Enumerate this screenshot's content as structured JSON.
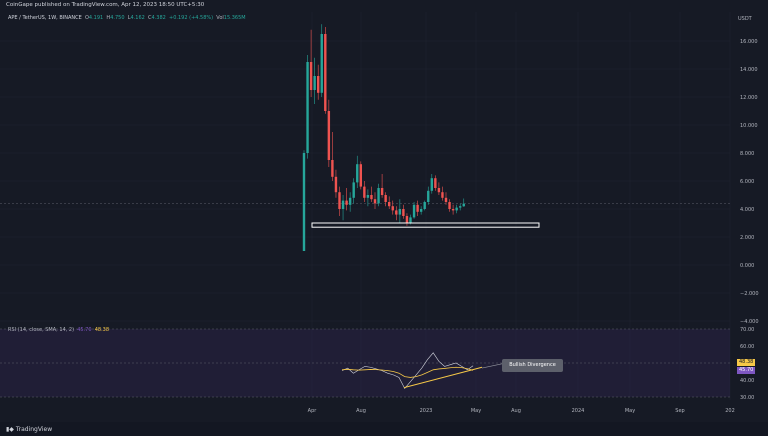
{
  "header": {
    "publisher": "CoinGape published on TradingView.com, Apr 12, 2023 18:50 UTC+5:30"
  },
  "legend": {
    "symbol": "APE / TetherUS, 1W, BINANCE",
    "open_label": "O",
    "open": "4.191",
    "high_label": "H",
    "high": "4.750",
    "low_label": "L",
    "low": "4.162",
    "close_label": "C",
    "close": "4.382",
    "change": "+0.192 (+4.58%)",
    "vol_label": "Vol",
    "vol": "15.365M"
  },
  "price_axis": {
    "currency": "USDT",
    "ticks": [
      "16.000",
      "14.000",
      "12.000",
      "10.000",
      "8.000",
      "6.000",
      "4.000",
      "2.000",
      "0.000",
      "−2.000",
      "−4.000"
    ]
  },
  "rsi": {
    "label": "RSI (14, close, SMA, 14, 2)",
    "value_sma": "45.70",
    "value_rsi": "48.38",
    "ticks": [
      "70.00",
      "60.00",
      "50.00",
      "40.00",
      "30.00"
    ],
    "tag_rsi": "48.38",
    "tag_sma": "45.70"
  },
  "time_axis": {
    "ticks": [
      "Apr",
      "Aug",
      "2023",
      "May",
      "Aug",
      "2024",
      "May",
      "Sep",
      "202"
    ]
  },
  "annotation": {
    "divergence": "Bullish Divergence"
  },
  "footer": {
    "brand": "TradingView"
  },
  "colors": {
    "up": "#26a69a",
    "down": "#ef5350",
    "background": "#161a25",
    "rsi_band": "#2a2346",
    "trendline": "#f7c948"
  },
  "chart_data": {
    "type": "candlestick",
    "ylim": [
      -4,
      17
    ],
    "support_zone": [
      2.7,
      3.0
    ],
    "candles": [
      {
        "o": 1.0,
        "h": 8.2,
        "l": 1.0,
        "c": 8.0
      },
      {
        "o": 8.0,
        "h": 15.0,
        "l": 7.6,
        "c": 14.5
      },
      {
        "o": 14.5,
        "h": 16.8,
        "l": 12.0,
        "c": 12.5
      },
      {
        "o": 12.5,
        "h": 14.8,
        "l": 11.5,
        "c": 13.5
      },
      {
        "o": 13.5,
        "h": 14.3,
        "l": 11.8,
        "c": 12.3
      },
      {
        "o": 12.3,
        "h": 17.2,
        "l": 12.0,
        "c": 16.5
      },
      {
        "o": 16.5,
        "h": 17.0,
        "l": 10.8,
        "c": 11.0
      },
      {
        "o": 11.0,
        "h": 11.8,
        "l": 7.0,
        "c": 7.5
      },
      {
        "o": 7.5,
        "h": 9.5,
        "l": 6.0,
        "c": 6.3
      },
      {
        "o": 6.3,
        "h": 6.8,
        "l": 4.8,
        "c": 5.2
      },
      {
        "o": 5.2,
        "h": 5.6,
        "l": 3.5,
        "c": 4.0
      },
      {
        "o": 4.0,
        "h": 5.0,
        "l": 3.2,
        "c": 4.6
      },
      {
        "o": 4.6,
        "h": 5.5,
        "l": 3.9,
        "c": 4.3
      },
      {
        "o": 4.3,
        "h": 5.2,
        "l": 3.8,
        "c": 4.8
      },
      {
        "o": 4.8,
        "h": 6.2,
        "l": 4.4,
        "c": 5.9
      },
      {
        "o": 5.9,
        "h": 7.8,
        "l": 5.5,
        "c": 7.2
      },
      {
        "o": 7.2,
        "h": 7.4,
        "l": 5.4,
        "c": 5.6
      },
      {
        "o": 5.6,
        "h": 6.0,
        "l": 4.5,
        "c": 4.8
      },
      {
        "o": 4.8,
        "h": 5.4,
        "l": 4.2,
        "c": 5.0
      },
      {
        "o": 5.0,
        "h": 5.6,
        "l": 4.5,
        "c": 4.7
      },
      {
        "o": 4.7,
        "h": 5.2,
        "l": 4.0,
        "c": 4.4
      },
      {
        "o": 4.4,
        "h": 5.8,
        "l": 4.2,
        "c": 5.5
      },
      {
        "o": 5.5,
        "h": 6.5,
        "l": 4.8,
        "c": 5.0
      },
      {
        "o": 5.0,
        "h": 5.2,
        "l": 4.2,
        "c": 4.5
      },
      {
        "o": 4.5,
        "h": 4.9,
        "l": 4.0,
        "c": 4.2
      },
      {
        "o": 4.2,
        "h": 4.6,
        "l": 3.6,
        "c": 3.9
      },
      {
        "o": 3.9,
        "h": 4.2,
        "l": 3.2,
        "c": 3.6
      },
      {
        "o": 3.6,
        "h": 4.7,
        "l": 3.0,
        "c": 4.0
      },
      {
        "o": 4.0,
        "h": 4.3,
        "l": 3.3,
        "c": 3.5
      },
      {
        "o": 3.5,
        "h": 3.7,
        "l": 2.8,
        "c": 3.0
      },
      {
        "o": 3.0,
        "h": 3.6,
        "l": 2.9,
        "c": 3.4
      },
      {
        "o": 3.4,
        "h": 4.5,
        "l": 3.3,
        "c": 4.3
      },
      {
        "o": 4.3,
        "h": 4.6,
        "l": 3.5,
        "c": 3.8
      },
      {
        "o": 3.8,
        "h": 4.2,
        "l": 3.6,
        "c": 4.0
      },
      {
        "o": 4.0,
        "h": 4.6,
        "l": 3.9,
        "c": 4.5
      },
      {
        "o": 4.5,
        "h": 5.6,
        "l": 4.3,
        "c": 5.3
      },
      {
        "o": 5.3,
        "h": 6.5,
        "l": 5.1,
        "c": 6.2
      },
      {
        "o": 6.2,
        "h": 6.4,
        "l": 5.3,
        "c": 5.5
      },
      {
        "o": 5.5,
        "h": 5.9,
        "l": 5.0,
        "c": 5.2
      },
      {
        "o": 5.2,
        "h": 5.6,
        "l": 4.6,
        "c": 4.8
      },
      {
        "o": 4.8,
        "h": 5.2,
        "l": 4.3,
        "c": 4.5
      },
      {
        "o": 4.5,
        "h": 4.7,
        "l": 3.8,
        "c": 4.0
      },
      {
        "o": 4.0,
        "h": 4.3,
        "l": 3.6,
        "c": 3.9
      },
      {
        "o": 3.9,
        "h": 4.3,
        "l": 3.7,
        "c": 4.1
      },
      {
        "o": 4.1,
        "h": 4.4,
        "l": 3.9,
        "c": 4.2
      },
      {
        "o": 4.19,
        "h": 4.75,
        "l": 4.16,
        "c": 4.38
      }
    ],
    "rsi_ylim": [
      25,
      75
    ],
    "rsi_values": [
      45.5,
      47.0,
      44.0,
      46.0,
      48.0,
      47.5,
      46.5,
      45.5,
      44.0,
      43.0,
      41.5,
      35.0,
      39.0,
      43.0,
      47.0,
      52.0,
      56.0,
      51.0,
      48.0,
      49.0,
      50.0,
      48.0,
      46.0,
      48.38
    ],
    "rsi_sma_values": [
      46.0,
      46.3,
      46.0,
      45.8,
      46.0,
      46.2,
      46.1,
      45.9,
      45.5,
      45.0,
      44.0,
      42.0,
      41.5,
      42.0,
      43.0,
      44.5,
      46.0,
      46.5,
      46.8,
      47.2,
      47.5,
      47.3,
      46.6,
      45.7
    ]
  }
}
